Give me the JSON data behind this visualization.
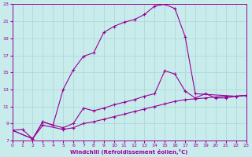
{
  "xlabel": "Windchill (Refroidissement éolien,°C)",
  "bg_color": "#c8ecec",
  "grid_color": "#b0d8d8",
  "line_color": "#990099",
  "xmin": 0,
  "xmax": 23,
  "ymin": 7,
  "ymax": 23,
  "yticks": [
    7,
    9,
    11,
    13,
    15,
    17,
    19,
    21,
    23
  ],
  "xticks": [
    0,
    1,
    2,
    3,
    4,
    5,
    6,
    7,
    8,
    9,
    10,
    11,
    12,
    13,
    14,
    15,
    16,
    17,
    18,
    19,
    20,
    21,
    22,
    23
  ],
  "line1_x": [
    0,
    1,
    2,
    3,
    4,
    5,
    6,
    7,
    8,
    9,
    10,
    11,
    12,
    13,
    14,
    15,
    16,
    17,
    18,
    22,
    23
  ],
  "line1_y": [
    8.2,
    8.3,
    7.2,
    9.2,
    8.8,
    13.0,
    15.3,
    16.9,
    17.3,
    19.7,
    20.4,
    20.9,
    21.2,
    21.8,
    22.8,
    23.0,
    22.5,
    19.2,
    12.5,
    12.2,
    12.3
  ],
  "line2_x": [
    0,
    2,
    3,
    4,
    5,
    6,
    7,
    8,
    9,
    10,
    11,
    12,
    13,
    14,
    15,
    16,
    17,
    18,
    19,
    20,
    21,
    22,
    23
  ],
  "line2_y": [
    8.2,
    7.2,
    9.2,
    8.8,
    8.5,
    9.0,
    10.8,
    10.5,
    10.8,
    11.2,
    11.5,
    11.8,
    12.2,
    12.5,
    15.2,
    14.8,
    12.8,
    12.0,
    12.5,
    12.0,
    12.0,
    12.2,
    12.3
  ],
  "line3_x": [
    0,
    2,
    3,
    5,
    6,
    7,
    8,
    9,
    10,
    11,
    12,
    13,
    14,
    15,
    16,
    17,
    18,
    19,
    20,
    21,
    22,
    23
  ],
  "line3_y": [
    8.2,
    7.2,
    8.8,
    8.3,
    8.5,
    9.0,
    9.2,
    9.5,
    9.8,
    10.1,
    10.4,
    10.7,
    11.0,
    11.3,
    11.6,
    11.8,
    11.9,
    12.0,
    12.1,
    12.2,
    12.2,
    12.3
  ]
}
